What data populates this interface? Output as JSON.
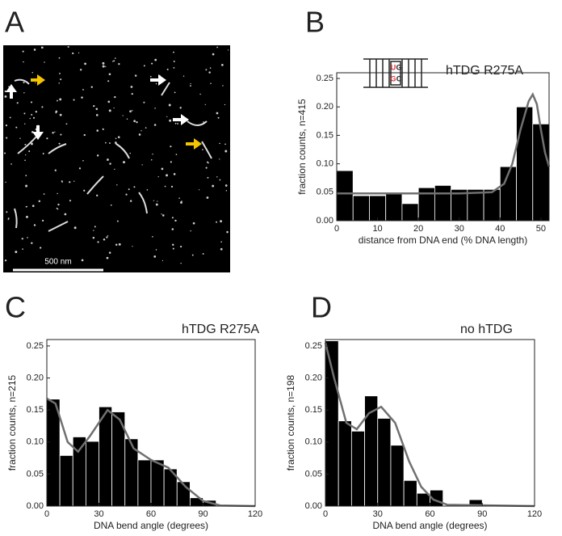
{
  "image_panel": {
    "panel_label": "A",
    "scale_bar_label": "500 nm"
  },
  "chart_data": [
    {
      "type": "histogram",
      "panel_label": "B",
      "annotation": "hTDG R275A",
      "inset_labels": [
        "U",
        "G",
        "G",
        "C"
      ],
      "xlabel": "distance from DNA end (% DNA length)",
      "ylabel": "fraction counts, n=415",
      "bins": [
        0,
        4,
        8,
        12,
        16,
        20,
        24,
        28,
        32,
        36,
        40,
        44,
        48,
        52
      ],
      "values": [
        0.088,
        0.044,
        0.044,
        0.05,
        0.03,
        0.058,
        0.062,
        0.055,
        0.055,
        0.055,
        0.095,
        0.2,
        0.17
      ],
      "color": "#000000",
      "fit": {
        "color": "#707070",
        "x": [
          0,
          10,
          20,
          30,
          38,
          41,
          43,
          45,
          47,
          48,
          49,
          50,
          51,
          52
        ],
        "y": [
          0.048,
          0.048,
          0.048,
          0.048,
          0.05,
          0.065,
          0.1,
          0.16,
          0.21,
          0.222,
          0.205,
          0.16,
          0.12,
          0.095
        ]
      },
      "xlim": [
        0,
        52
      ],
      "xticks": [
        0,
        10,
        20,
        30,
        40,
        50
      ],
      "ylim": [
        0,
        0.26
      ],
      "yticks": [
        {
          "value": 0,
          "label": "0.00"
        },
        {
          "value": 0.05,
          "label": "0.05"
        },
        {
          "value": 0.1,
          "label": "0.10"
        },
        {
          "value": 0.15,
          "label": "0.15"
        },
        {
          "value": 0.2,
          "label": "0.20"
        },
        {
          "value": 0.25,
          "label": "0.25"
        }
      ]
    },
    {
      "type": "histogram",
      "panel_label": "C",
      "annotation": "hTDG R275A",
      "xlabel": "DNA bend angle (degrees)",
      "ylabel": "fraction counts, n=215",
      "bins": [
        0,
        7.5,
        15,
        22.5,
        30,
        37.5,
        45,
        52.5,
        60,
        67.5,
        75,
        82.5,
        90,
        97.5
      ],
      "values": [
        0.167,
        0.079,
        0.108,
        0.101,
        0.155,
        0.147,
        0.105,
        0.072,
        0.072,
        0.058,
        0.038,
        0.013,
        0.009
      ],
      "color": "#000000",
      "fit": {
        "color": "#707070",
        "x": [
          0,
          5,
          12,
          18,
          25,
          35,
          42,
          50,
          60,
          70,
          80,
          90,
          100,
          120
        ],
        "y": [
          0.168,
          0.16,
          0.1,
          0.085,
          0.11,
          0.15,
          0.135,
          0.09,
          0.072,
          0.06,
          0.03,
          0.008,
          0.001,
          0
        ]
      },
      "xlim": [
        0,
        120
      ],
      "xticks": [
        0,
        30,
        60,
        90,
        120
      ],
      "ylim": [
        0,
        0.26
      ],
      "yticks": [
        {
          "value": 0,
          "label": "0.00"
        },
        {
          "value": 0.05,
          "label": "0.05"
        },
        {
          "value": 0.1,
          "label": "0.10"
        },
        {
          "value": 0.15,
          "label": "0.15"
        },
        {
          "value": 0.2,
          "label": "0.20"
        },
        {
          "value": 0.25,
          "label": "0.25"
        }
      ]
    },
    {
      "type": "histogram",
      "panel_label": "D",
      "annotation": "no hTDG",
      "xlabel": "DNA bend angle (degrees)",
      "ylabel": "fraction counts, n=198",
      "bins": [
        0,
        7.5,
        15,
        22.5,
        30,
        37.5,
        45,
        52.5,
        60,
        67.5,
        75,
        82.5,
        90
      ],
      "values": [
        0.258,
        0.133,
        0.117,
        0.172,
        0.137,
        0.095,
        0.04,
        0.02,
        0.025,
        0,
        0,
        0.01
      ],
      "color": "#000000",
      "fit": {
        "color": "#707070",
        "x": [
          0,
          5,
          12,
          18,
          25,
          32,
          40,
          48,
          55,
          62,
          70,
          120
        ],
        "y": [
          0.255,
          0.2,
          0.13,
          0.12,
          0.145,
          0.155,
          0.13,
          0.07,
          0.03,
          0.01,
          0.002,
          0
        ]
      },
      "xlim": [
        0,
        120
      ],
      "xticks": [
        0,
        30,
        60,
        90,
        120
      ],
      "ylim": [
        0,
        0.26
      ],
      "yticks": [
        {
          "value": 0,
          "label": "0.00"
        },
        {
          "value": 0.05,
          "label": "0.05"
        },
        {
          "value": 0.1,
          "label": "0.10"
        },
        {
          "value": 0.15,
          "label": "0.15"
        },
        {
          "value": 0.2,
          "label": "0.20"
        },
        {
          "value": 0.25,
          "label": "0.25"
        }
      ]
    }
  ]
}
